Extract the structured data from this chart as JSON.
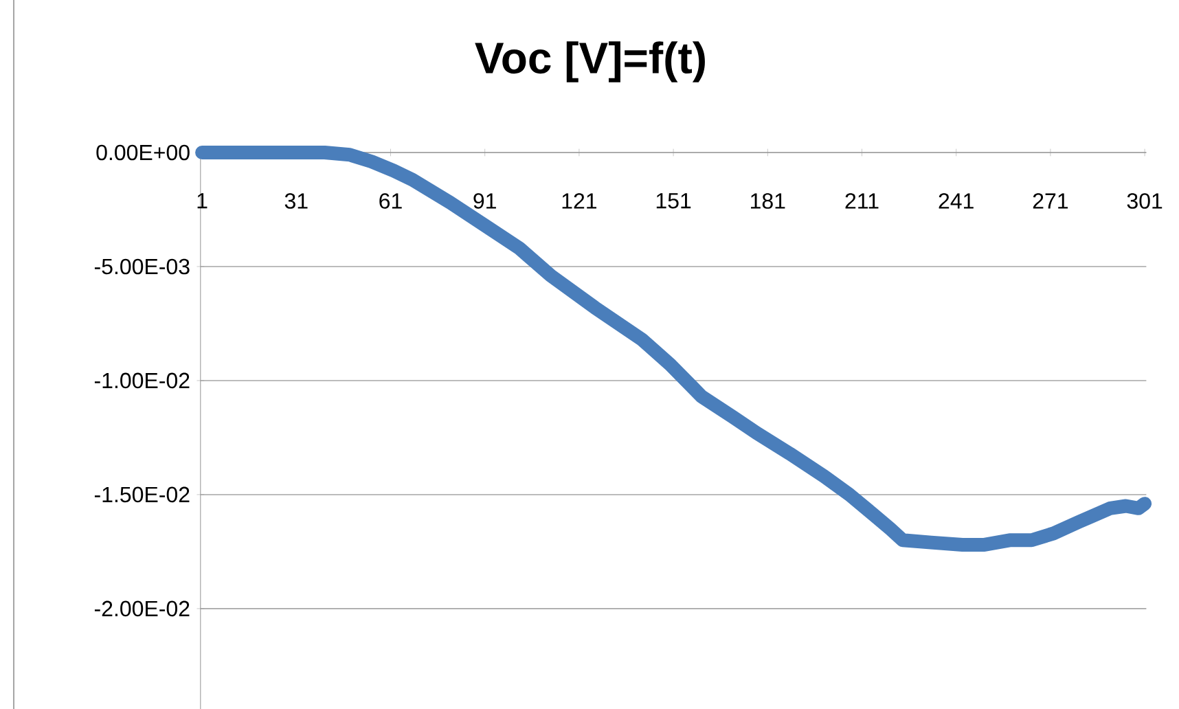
{
  "chart_data": {
    "type": "line",
    "title": "Voc [V]=f(t)",
    "x": [
      1,
      20,
      40,
      48,
      55,
      62,
      68,
      80,
      91,
      102,
      112,
      126,
      141,
      150,
      160,
      170,
      177.5,
      188,
      199,
      207,
      214,
      220,
      224,
      233,
      243,
      250,
      258,
      265,
      272,
      280,
      290,
      295,
      299,
      301
    ],
    "series": [
      {
        "color": "#4a7ebb",
        "values": [
          0,
          0,
          0,
          -0.0001,
          -0.0004,
          -0.0008,
          -0.0012,
          -0.0022,
          -0.0032,
          -0.0042,
          -0.0054,
          -0.0068,
          -0.0082,
          -0.0093,
          -0.0107,
          -0.0116,
          -0.0123,
          -0.0132,
          -0.0142,
          -0.015,
          -0.0158,
          -0.0165,
          -0.017,
          -0.0171,
          -0.0172,
          -0.0172,
          -0.017,
          -0.017,
          -0.0167,
          -0.0162,
          -0.0156,
          -0.0155,
          -0.0156,
          -0.0154
        ]
      }
    ],
    "xlim": [
      0.5,
      301.5
    ],
    "xticks": [
      1,
      31,
      61,
      91,
      121,
      151,
      181,
      211,
      241,
      271,
      301
    ],
    "ylim": [
      -0.0244,
      0
    ],
    "yticks": [
      {
        "value": 0,
        "label": "0.00E+00"
      },
      {
        "value": -0.005,
        "label": "-5.00E-03"
      },
      {
        "value": -0.01,
        "label": "-1.00E-02"
      },
      {
        "value": -0.015,
        "label": "-1.50E-02"
      },
      {
        "value": -0.02,
        "label": "-2.00E-02"
      }
    ],
    "grid": "y"
  }
}
